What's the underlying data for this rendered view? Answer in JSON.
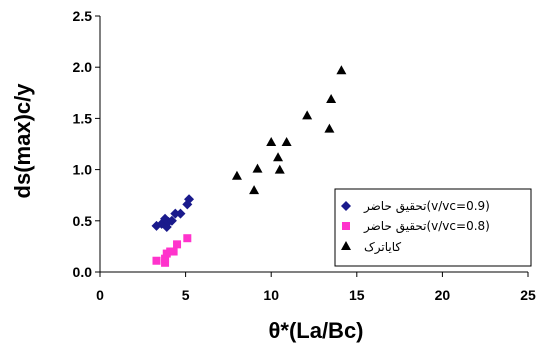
{
  "chart_data": {
    "type": "scatter",
    "xlabel": "θ*(La/Bc)",
    "ylabel": "ds(max)c/y",
    "xlim": [
      0,
      25
    ],
    "ylim": [
      0,
      2.5
    ],
    "xticks": [
      "0",
      "5",
      "10",
      "15",
      "20",
      "25"
    ],
    "yticks": [
      "0.0",
      "0.5",
      "1.0",
      "1.5",
      "2.0",
      "2.5"
    ],
    "grid": false,
    "legend_position": "bottom-right",
    "series": [
      {
        "name": "تحقیق حاضر(v/vc=0.9)",
        "marker": "diamond",
        "color": "#1a1a8c",
        "points": [
          [
            3.3,
            0.45
          ],
          [
            3.6,
            0.47
          ],
          [
            3.8,
            0.52
          ],
          [
            3.9,
            0.44
          ],
          [
            4.0,
            0.49
          ],
          [
            4.2,
            0.5
          ],
          [
            4.4,
            0.57
          ],
          [
            4.7,
            0.57
          ],
          [
            5.1,
            0.66
          ],
          [
            5.2,
            0.71
          ]
        ]
      },
      {
        "name": "تحقیق حاضر(v/vc=0.8)",
        "marker": "square",
        "color": "#ff33cc",
        "points": [
          [
            3.3,
            0.11
          ],
          [
            3.8,
            0.09
          ],
          [
            3.8,
            0.13
          ],
          [
            3.9,
            0.18
          ],
          [
            4.1,
            0.2
          ],
          [
            4.3,
            0.2
          ],
          [
            4.5,
            0.27
          ],
          [
            5.1,
            0.33
          ]
        ]
      },
      {
        "name": "کایاترک",
        "marker": "triangle",
        "color": "#000000",
        "points": [
          [
            8.0,
            0.94
          ],
          [
            9.0,
            0.8
          ],
          [
            9.2,
            1.01
          ],
          [
            10.0,
            1.27
          ],
          [
            10.4,
            1.12
          ],
          [
            10.5,
            1.0
          ],
          [
            10.9,
            1.27
          ],
          [
            12.1,
            1.53
          ],
          [
            13.4,
            1.4
          ],
          [
            13.5,
            1.69
          ],
          [
            14.1,
            1.97
          ]
        ]
      }
    ]
  }
}
